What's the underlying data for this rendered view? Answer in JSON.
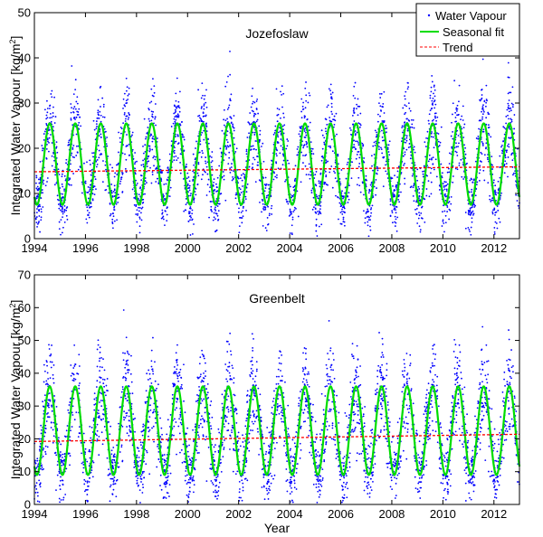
{
  "chart_data": [
    {
      "type": "scatter",
      "title": "Jozefoslaw",
      "xlabel": "",
      "ylabel": "Integrated Water Vapour [kg/m",
      "ylabel_sup": "2",
      "ylabel_end": "]",
      "xlim": [
        1994,
        2013
      ],
      "ylim": [
        0,
        50
      ],
      "xticks": [
        "1994",
        "1996",
        "1998",
        "2000",
        "2002",
        "2004",
        "2006",
        "2008",
        "2010",
        "2012"
      ],
      "xtick_values": [
        1994,
        1996,
        1998,
        2000,
        2002,
        2004,
        2006,
        2008,
        2010,
        2012
      ],
      "yticks": [
        "0",
        "10",
        "20",
        "30",
        "40",
        "50"
      ],
      "ytick_values": [
        0,
        10,
        20,
        30,
        40,
        50
      ],
      "legend": {
        "position": "top-right",
        "entries": [
          "Water Vapour",
          "Seasonal fit",
          "Trend"
        ]
      },
      "series": [
        {
          "name": "Water Vapour",
          "kind": "points",
          "color": "#0000ff",
          "mean": 16.5,
          "amplitude": 9,
          "peak_year_fraction": 0.6,
          "spread": 5,
          "per_year": 180
        },
        {
          "name": "Seasonal fit",
          "kind": "line",
          "color": "#00dd00",
          "mean": 16.5,
          "amplitude": 9,
          "peak_year_fraction": 0.6
        },
        {
          "name": "Trend",
          "kind": "line",
          "color": "#ff0000",
          "x": [
            1994,
            2013
          ],
          "y": [
            14.8,
            15.9
          ]
        }
      ]
    },
    {
      "type": "scatter",
      "title": "Greenbelt",
      "xlabel": "Year",
      "ylabel": "Integrated Water Vapour [kg/m",
      "ylabel_sup": "2",
      "ylabel_end": "]",
      "xlim": [
        1994,
        2013
      ],
      "ylim": [
        0,
        70
      ],
      "xticks": [
        "1994",
        "1996",
        "1998",
        "2000",
        "2002",
        "2004",
        "2006",
        "2008",
        "2010",
        "2012"
      ],
      "xtick_values": [
        1994,
        1996,
        1998,
        2000,
        2002,
        2004,
        2006,
        2008,
        2010,
        2012
      ],
      "yticks": [
        "0",
        "10",
        "20",
        "30",
        "40",
        "50",
        "60",
        "70"
      ],
      "ytick_values": [
        0,
        10,
        20,
        30,
        40,
        50,
        60,
        70
      ],
      "series": [
        {
          "name": "Water Vapour",
          "kind": "points",
          "color": "#0000ff",
          "mean": 22.5,
          "amplitude": 13.5,
          "peak_year_fraction": 0.6,
          "spread": 7.5,
          "per_year": 180
        },
        {
          "name": "Seasonal fit",
          "kind": "line",
          "color": "#00dd00",
          "mean": 22.5,
          "amplitude": 13.5,
          "peak_year_fraction": 0.6
        },
        {
          "name": "Trend",
          "kind": "line",
          "color": "#ff0000",
          "x": [
            1994,
            2013
          ],
          "y": [
            19.2,
            21.4
          ]
        }
      ]
    }
  ]
}
